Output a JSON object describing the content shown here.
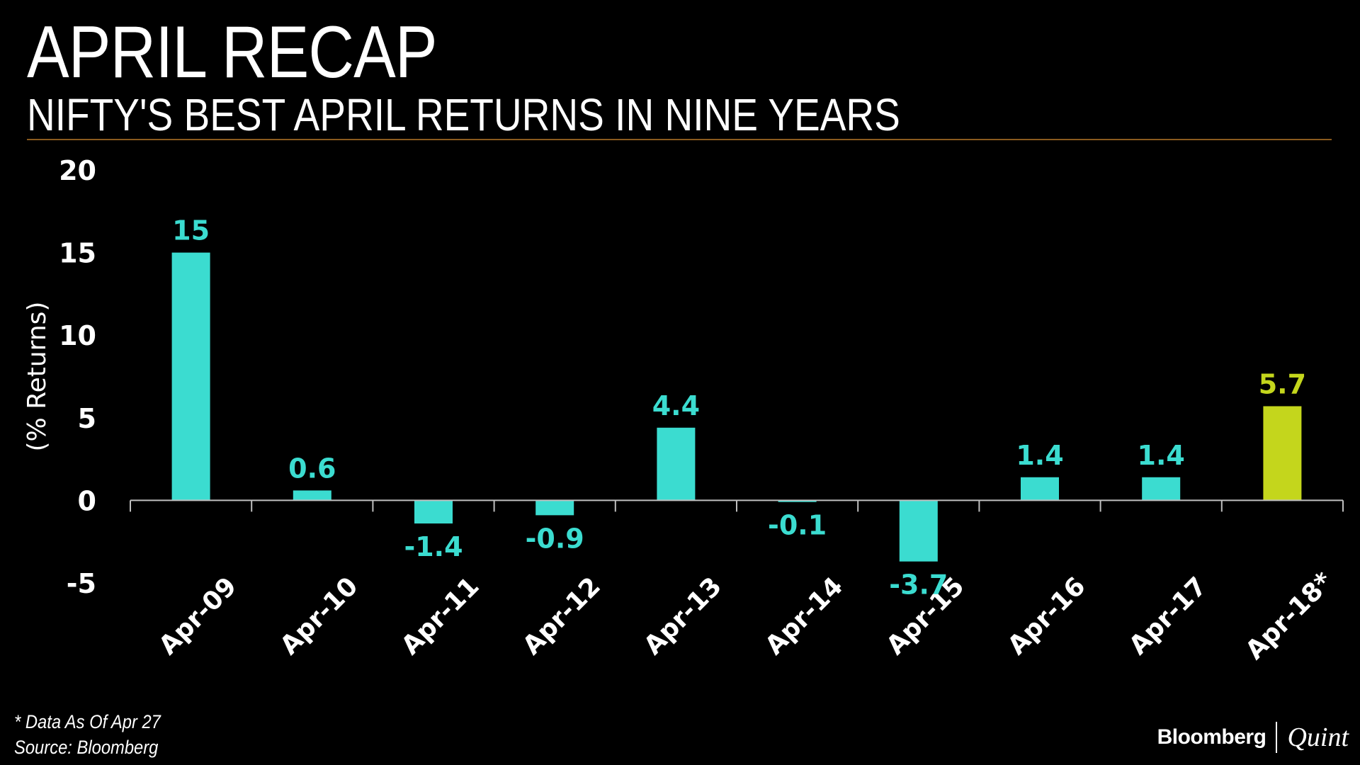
{
  "header": {
    "title": "APRIL RECAP",
    "subtitle": "NIFTY'S BEST APRIL RETURNS IN NINE YEARS"
  },
  "footnotes": {
    "note": "* Data As Of Apr 27",
    "source": "Source: Bloomberg"
  },
  "brand": {
    "name": "Bloomberg",
    "sub": "Quint"
  },
  "colors": {
    "bar": "#3bdcd0",
    "highlight": "#c4d61c",
    "rule": "#8a5a1e",
    "axis": "#ffffff"
  },
  "chart_data": {
    "type": "bar",
    "title": "NIFTY'S BEST APRIL RETURNS IN NINE YEARS",
    "xlabel": "",
    "ylabel": "(% Returns)",
    "categories": [
      "Apr-09",
      "Apr-10",
      "Apr-11",
      "Apr-12",
      "Apr-13",
      "Apr-14",
      "Apr-15",
      "Apr-16",
      "Apr-17",
      "Apr-18*"
    ],
    "values": [
      15,
      0.6,
      -1.4,
      -0.9,
      4.4,
      -0.1,
      -3.7,
      1.4,
      1.4,
      5.7
    ],
    "value_labels": [
      "15",
      "0.6",
      "-1.4",
      "-0.9",
      "4.4",
      "-0.1",
      "-3.7",
      "1.4",
      "1.4",
      "5.7"
    ],
    "highlight_index": 9,
    "ylim": [
      -5,
      20
    ],
    "yticks": [
      20,
      15,
      10,
      5,
      0,
      -5
    ],
    "ytick_labels": [
      "20",
      "15",
      "10",
      "5",
      "0",
      "-5"
    ],
    "grid": false,
    "legend": "none"
  }
}
